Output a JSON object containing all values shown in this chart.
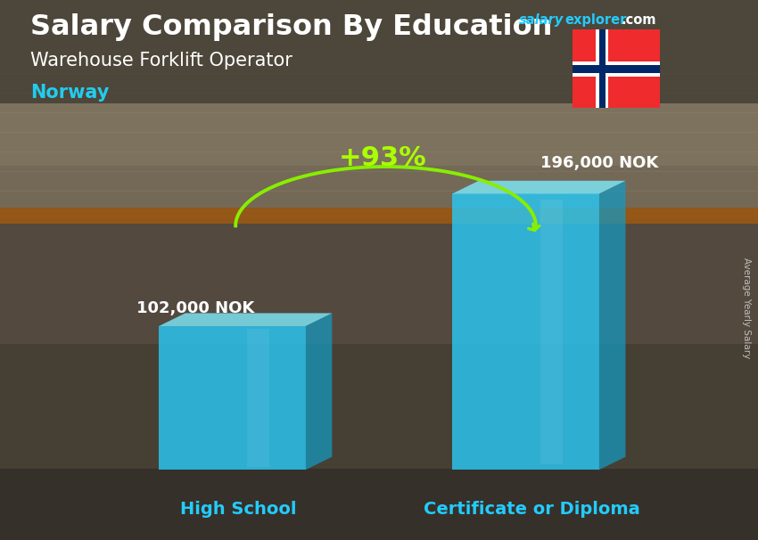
{
  "title_main": "Salary Comparison By Education",
  "subtitle": "Warehouse Forklift Operator",
  "country": "Norway",
  "categories": [
    "High School",
    "Certificate or Diploma"
  ],
  "values": [
    102000,
    196000
  ],
  "value_labels": [
    "102,000 NOK",
    "196,000 NOK"
  ],
  "pct_change": "+93%",
  "bar_face_color": "#29C8F5",
  "bar_top_color": "#7DE8F8",
  "bar_side_color": "#1599C0",
  "bar_alpha": 0.82,
  "title_color": "#FFFFFF",
  "subtitle_color": "#FFFFFF",
  "country_color": "#22CCEE",
  "value_label_color": "#FFFFFF",
  "category_label_color": "#22CCFF",
  "pct_color": "#AAFF00",
  "arrow_color": "#88EE00",
  "salary_color": "#22CCFF",
  "explorer_color": "#22CCFF",
  "dotcom_color": "#FFFFFF",
  "axis_label": "Average Yearly Salary",
  "ylim": [
    0,
    230000
  ],
  "bg_warehouse_colors": [
    "#7a6a50",
    "#9a8860",
    "#6a7060",
    "#4a5a6a",
    "#5a6a5a"
  ],
  "title_fontsize": 23,
  "subtitle_fontsize": 15,
  "country_fontsize": 15,
  "value_fontsize": 13,
  "cat_fontsize": 14
}
